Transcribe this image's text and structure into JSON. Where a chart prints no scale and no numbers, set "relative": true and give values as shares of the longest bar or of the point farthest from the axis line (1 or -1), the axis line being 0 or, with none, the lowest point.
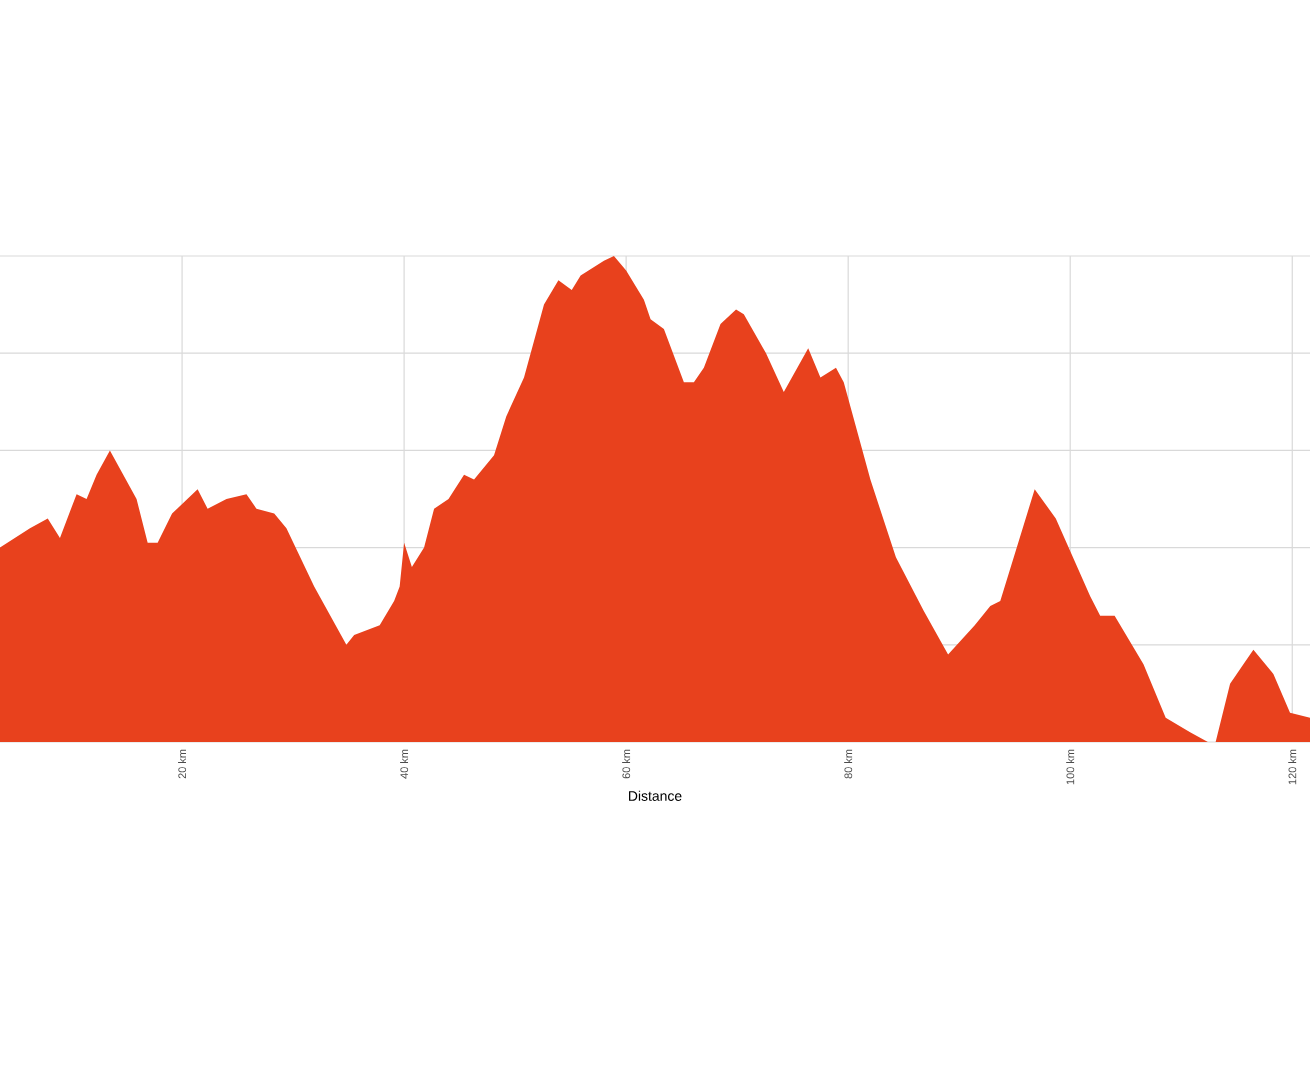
{
  "chart_data": {
    "type": "area",
    "xlabel": "Distance",
    "relative": true,
    "grid": true,
    "color": "#e8411d",
    "xlim": [
      3.6,
      121.6
    ],
    "xticks": [
      {
        "value": 20,
        "label": "20 km"
      },
      {
        "value": 40,
        "label": "40 km"
      },
      {
        "value": 60,
        "label": "60 km"
      },
      {
        "value": 80,
        "label": "80 km"
      },
      {
        "value": 100,
        "label": "100 km"
      },
      {
        "value": 120,
        "label": "120 km"
      }
    ],
    "x": [
      3.6,
      6.3,
      7.9,
      9.0,
      10.5,
      11.4,
      12.3,
      13.5,
      15.9,
      16.9,
      17.8,
      19.1,
      21.4,
      22.3,
      24.0,
      25.8,
      26.7,
      28.3,
      29.4,
      31.9,
      34.8,
      35.5,
      37.8,
      39.1,
      39.6,
      40.0,
      40.7,
      41.8,
      42.7,
      44.0,
      45.4,
      46.3,
      48.1,
      49.2,
      50.8,
      52.6,
      53.9,
      55.1,
      55.9,
      58.0,
      58.9,
      60.0,
      61.6,
      62.2,
      63.4,
      65.2,
      66.1,
      67.0,
      68.5,
      69.9,
      70.6,
      72.6,
      74.2,
      76.4,
      77.5,
      78.9,
      79.6,
      82.0,
      84.3,
      86.8,
      89.0,
      91.4,
      92.8,
      93.7,
      96.8,
      98.7,
      101.8,
      102.7,
      104.0,
      106.6,
      108.6,
      110.8,
      112.4,
      113.1,
      114.4,
      115.6,
      116.5,
      118.3,
      119.8,
      121.6
    ],
    "values": [
      0.4,
      0.44,
      0.46,
      0.42,
      0.51,
      0.5,
      0.55,
      0.6,
      0.5,
      0.41,
      0.41,
      0.47,
      0.52,
      0.48,
      0.5,
      0.51,
      0.48,
      0.47,
      0.44,
      0.32,
      0.2,
      0.22,
      0.24,
      0.29,
      0.32,
      0.41,
      0.36,
      0.4,
      0.48,
      0.5,
      0.55,
      0.54,
      0.59,
      0.67,
      0.75,
      0.9,
      0.95,
      0.93,
      0.96,
      0.99,
      1.0,
      0.97,
      0.91,
      0.87,
      0.85,
      0.74,
      0.74,
      0.77,
      0.86,
      0.89,
      0.88,
      0.8,
      0.72,
      0.81,
      0.75,
      0.77,
      0.74,
      0.54,
      0.38,
      0.27,
      0.18,
      0.24,
      0.28,
      0.29,
      0.52,
      0.46,
      0.3,
      0.26,
      0.26,
      0.16,
      0.05,
      0.02,
      0.0,
      0.0,
      0.12,
      0.16,
      0.19,
      0.14,
      0.06,
      0.05
    ]
  }
}
